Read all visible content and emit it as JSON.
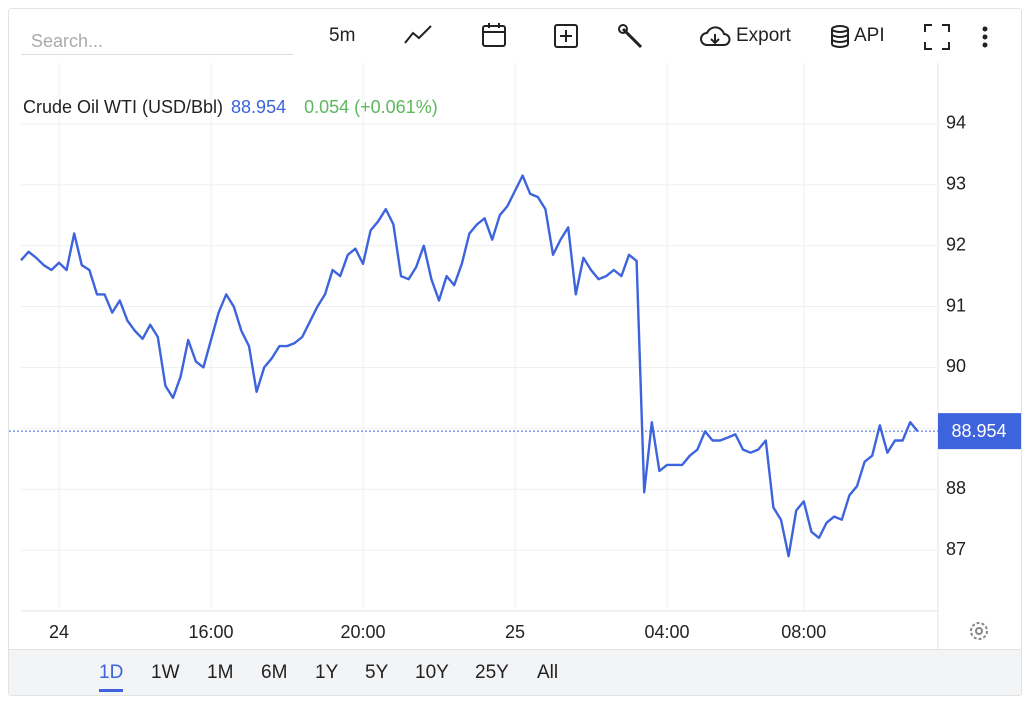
{
  "toolbar": {
    "search_placeholder": "Search...",
    "interval": "5m",
    "export": "Export",
    "api": "API"
  },
  "chart_data": {
    "type": "line",
    "title": "Crude Oil WTI (USD/Bbl)",
    "last_price": 88.954,
    "change": "0.054 (+0.061%)",
    "change_color": "#5cb85c",
    "categories": [
      null,
      null,
      null,
      null,
      null,
      "24",
      null,
      null,
      null,
      null,
      null,
      null,
      null,
      null,
      null,
      null,
      null,
      null,
      null,
      null,
      null,
      null,
      null,
      null,
      null,
      "16:00",
      null,
      null,
      null,
      null,
      null,
      null,
      null,
      null,
      null,
      null,
      null,
      null,
      null,
      null,
      null,
      null,
      null,
      null,
      null,
      "20:00",
      null,
      null,
      null,
      null,
      null,
      null,
      null,
      null,
      null,
      null,
      null,
      null,
      null,
      null,
      null,
      null,
      null,
      null,
      null,
      "25",
      null,
      null,
      null,
      null,
      null,
      null,
      null,
      null,
      null,
      null,
      null,
      null,
      null,
      null,
      null,
      null,
      null,
      null,
      null,
      "04:00",
      null,
      null,
      null,
      null,
      null,
      null,
      null,
      null,
      null,
      null,
      null,
      null,
      null,
      null,
      null,
      null,
      null,
      "08:00",
      null,
      null,
      null,
      null,
      null,
      null,
      null,
      null,
      null,
      null,
      null,
      null,
      null,
      null,
      null
    ],
    "series": [
      {
        "name": "Crude Oil WTI",
        "color": "#3d63dd",
        "values": [
          91.76,
          91.9,
          91.8,
          91.68,
          91.6,
          91.72,
          91.6,
          92.2,
          91.68,
          91.6,
          91.2,
          91.2,
          90.9,
          91.1,
          90.77,
          90.6,
          90.47,
          90.7,
          90.5,
          89.7,
          89.5,
          89.85,
          90.45,
          90.1,
          90.0,
          90.45,
          90.9,
          91.2,
          91.0,
          90.6,
          90.35,
          89.6,
          90.0,
          90.15,
          90.35,
          90.35,
          90.4,
          90.5,
          90.75,
          91.0,
          91.2,
          91.6,
          91.5,
          91.85,
          91.95,
          91.7,
          92.25,
          92.4,
          92.6,
          92.35,
          91.5,
          91.45,
          91.65,
          92.0,
          91.45,
          91.1,
          91.5,
          91.35,
          91.7,
          92.2,
          92.35,
          92.45,
          92.1,
          92.5,
          92.65,
          92.9,
          93.15,
          92.85,
          92.8,
          92.6,
          91.85,
          92.1,
          92.3,
          91.2,
          91.8,
          91.6,
          91.45,
          91.5,
          91.6,
          91.5,
          91.85,
          91.75,
          87.95,
          89.1,
          88.3,
          88.4,
          88.4,
          88.4,
          88.55,
          88.65,
          88.95,
          88.8,
          88.8,
          88.85,
          88.9,
          88.65,
          88.6,
          88.65,
          88.8,
          87.7,
          87.5,
          86.9,
          87.65,
          87.8,
          87.3,
          87.2,
          87.45,
          87.55,
          87.5,
          87.9,
          88.05,
          88.45,
          88.55,
          89.05,
          88.6,
          88.8,
          88.8,
          89.1,
          88.95
        ]
      }
    ],
    "ylim": [
      86,
      95
    ],
    "yticks": [
      87,
      88,
      89,
      90,
      91,
      92,
      93,
      94
    ],
    "grid": true
  },
  "ranges": {
    "options": [
      "1D",
      "1W",
      "1M",
      "6M",
      "1Y",
      "5Y",
      "10Y",
      "25Y",
      "All"
    ],
    "selected": 0
  }
}
